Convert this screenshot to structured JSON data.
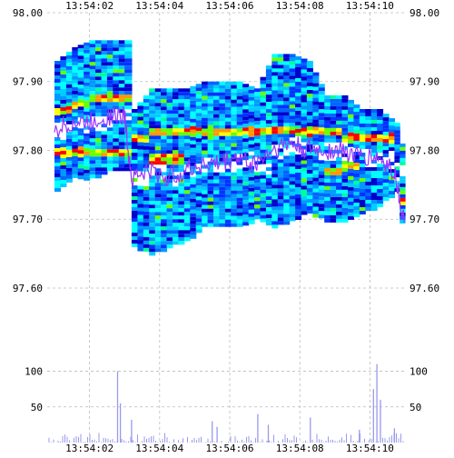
{
  "chart_data": [
    {
      "type": "heatmap",
      "title": "",
      "xlabel": "",
      "ylabel": "",
      "x_tick_labels": [
        "13:54:02",
        "13:54:04",
        "13:54:06",
        "13:54:08",
        "13:54:10"
      ],
      "y_tick_labels": [
        "98.00",
        "97.90",
        "97.80",
        "97.70",
        "97.60"
      ],
      "ylim": [
        97.53,
        98.0
      ],
      "grid": true,
      "colors": {
        "scale": [
          "#0000cc",
          "#0033ff",
          "#0066ff",
          "#0099ff",
          "#00ccff",
          "#00ffff",
          "#00ff99",
          "#66ff00",
          "#ffff00",
          "#ff9900",
          "#ff0000"
        ],
        "top_of_book_trace": "#9933ff",
        "background": "#ffffff",
        "grid": "#bbbbbb"
      },
      "columns": [
        {
          "t": 0.0,
          "lo": 97.74,
          "hi": 97.93,
          "mid": 97.83,
          "hot": [
            97.8,
            97.86
          ]
        },
        {
          "t": 0.25,
          "lo": 97.76,
          "hi": 97.95,
          "mid": 97.84,
          "hot": [
            97.8,
            97.87
          ]
        },
        {
          "t": 0.5,
          "lo": 97.76,
          "hi": 97.96,
          "mid": 97.84,
          "hot": [
            97.8,
            97.88
          ]
        },
        {
          "t": 0.75,
          "lo": 97.77,
          "hi": 97.96,
          "mid": 97.85,
          "hot": [
            97.8,
            97.88
          ]
        },
        {
          "t": 1.0,
          "lo": 97.77,
          "hi": 97.96,
          "mid": 97.85,
          "hot": [
            97.8,
            97.88
          ]
        },
        {
          "t": 1.1,
          "lo": 97.66,
          "hi": 97.86,
          "mid": 97.76,
          "hot": [
            97.76,
            97.82
          ]
        },
        {
          "t": 1.35,
          "lo": 97.65,
          "hi": 97.89,
          "mid": 97.77,
          "hot": [
            97.79,
            97.83
          ]
        },
        {
          "t": 1.6,
          "lo": 97.66,
          "hi": 97.89,
          "mid": 97.76,
          "hot": [
            97.79,
            97.83
          ]
        },
        {
          "t": 1.85,
          "lo": 97.67,
          "hi": 97.89,
          "mid": 97.77,
          "hot": [
            97.83
          ]
        },
        {
          "t": 2.1,
          "lo": 97.69,
          "hi": 97.9,
          "mid": 97.78,
          "hot": [
            97.83
          ]
        },
        {
          "t": 2.35,
          "lo": 97.69,
          "hi": 97.9,
          "mid": 97.78,
          "hot": [
            97.83
          ]
        },
        {
          "t": 2.6,
          "lo": 97.69,
          "hi": 97.9,
          "mid": 97.79,
          "hot": [
            97.83
          ]
        },
        {
          "t": 2.85,
          "lo": 97.7,
          "hi": 97.89,
          "mid": 97.78,
          "hot": [
            97.83
          ]
        },
        {
          "t": 3.1,
          "lo": 97.69,
          "hi": 97.94,
          "mid": 97.8,
          "hot": [
            97.83
          ]
        },
        {
          "t": 3.35,
          "lo": 97.7,
          "hi": 97.94,
          "mid": 97.81,
          "hot": [
            97.83
          ]
        },
        {
          "t": 3.6,
          "lo": 97.71,
          "hi": 97.93,
          "mid": 97.8,
          "hot": [
            97.83
          ]
        },
        {
          "t": 3.85,
          "lo": 97.7,
          "hi": 97.88,
          "mid": 97.8,
          "hot": [
            97.83,
            97.77
          ]
        },
        {
          "t": 4.1,
          "lo": 97.7,
          "hi": 97.88,
          "mid": 97.8,
          "hot": [
            97.82,
            97.78
          ]
        },
        {
          "t": 4.35,
          "lo": 97.71,
          "hi": 97.86,
          "mid": 97.79,
          "hot": [
            97.82
          ]
        },
        {
          "t": 4.6,
          "lo": 97.72,
          "hi": 97.86,
          "mid": 97.79,
          "hot": [
            97.82
          ]
        },
        {
          "t": 4.85,
          "lo": 97.74,
          "hi": 97.84,
          "mid": 97.77,
          "hot": [
            97.73
          ]
        },
        {
          "t": 5.0,
          "lo": 97.65,
          "hi": 97.78,
          "mid": 97.69,
          "hot": [
            97.66
          ]
        }
      ],
      "volume_panel": {
        "type": "bar",
        "y_tick_labels": [
          "100",
          "50"
        ],
        "ylim": [
          0,
          130
        ],
        "spikes": [
          {
            "t": 0.9,
            "v": 100
          },
          {
            "t": 0.94,
            "v": 55
          },
          {
            "t": 1.1,
            "v": 32
          },
          {
            "t": 2.25,
            "v": 30
          },
          {
            "t": 2.32,
            "v": 22
          },
          {
            "t": 2.9,
            "v": 40
          },
          {
            "t": 3.05,
            "v": 25
          },
          {
            "t": 3.65,
            "v": 35
          },
          {
            "t": 4.35,
            "v": 18
          },
          {
            "t": 4.55,
            "v": 75
          },
          {
            "t": 4.6,
            "v": 110
          },
          {
            "t": 4.65,
            "v": 60
          },
          {
            "t": 4.85,
            "v": 20
          }
        ],
        "baseline_level": 8
      }
    }
  ]
}
